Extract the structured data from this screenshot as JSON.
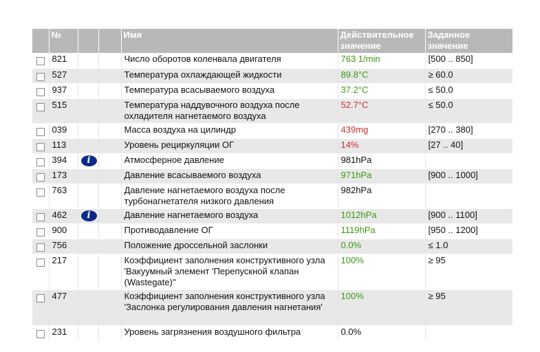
{
  "columns": {
    "num": "№",
    "name": "Имя",
    "actual": [
      "Действительное",
      "значение"
    ],
    "setpoint": [
      "Заданное",
      "значение"
    ]
  },
  "status_colors": {
    "in_range": "#3a9a10",
    "out_of_range": "#c93030",
    "neutral": "#111111"
  },
  "rows": [
    {
      "num": "821",
      "info": false,
      "name": "Число оборотов коленвала двигателя",
      "actual": "763 1/min",
      "status": "green",
      "setpoint": "[500 .. 850]"
    },
    {
      "num": "527",
      "info": false,
      "name": "Температура охлаждающей жидкости",
      "actual": "89.8°C",
      "status": "green",
      "setpoint": "≥ 60.0"
    },
    {
      "num": "937",
      "info": false,
      "name": "Температура всасываемого воздуха",
      "actual": "37.2°C",
      "status": "green",
      "setpoint": "≤ 50.0"
    },
    {
      "num": "515",
      "info": false,
      "name": "Температура наддувочного воздуха после охладителя нагнетаемого воздуха",
      "actual": "52.7°C",
      "status": "red",
      "setpoint": "≤ 50.0"
    },
    {
      "num": "039",
      "info": false,
      "name": "Масса воздуха на цилиндр",
      "actual": "439mg",
      "status": "red",
      "setpoint": "[270 .. 380]"
    },
    {
      "num": "113",
      "info": false,
      "name": "Уровень рециркуляции ОГ",
      "actual": "14%",
      "status": "red",
      "setpoint": "[27 .. 40]"
    },
    {
      "num": "394",
      "info": true,
      "name": "Атмосферное давление",
      "actual": "981hPa",
      "status": "black",
      "setpoint": ""
    },
    {
      "num": "173",
      "info": false,
      "name": "Давление всасываемого воздуха",
      "actual": "971hPa",
      "status": "green",
      "setpoint": "[900 .. 1000]"
    },
    {
      "num": "763",
      "info": false,
      "name": "Давление нагнетаемого воздуха после турбонагнетателя низкого давления",
      "actual": "982hPa",
      "status": "black",
      "setpoint": ""
    },
    {
      "num": "462",
      "info": true,
      "name": "Давление нагнетаемого воздуха",
      "actual": "1012hPa",
      "status": "green",
      "setpoint": "[900 .. 1100]"
    },
    {
      "num": "900",
      "info": false,
      "name": "Противодавление ОГ",
      "actual": "1119hPa",
      "status": "green",
      "setpoint": "[950 .. 1200]"
    },
    {
      "num": "756",
      "info": false,
      "name": "Положение дроссельной заслонки",
      "actual": "0.0%",
      "status": "green",
      "setpoint": "≤ 1.0"
    },
    {
      "num": "217",
      "info": false,
      "name": "Коэффициент заполнения конструктивного узла 'Вакуумный элемент 'Перепускной клапан (Wastegate)''",
      "actual": "100%",
      "status": "green",
      "setpoint": "≥ 95"
    },
    {
      "num": "477",
      "info": false,
      "name": "Коэффициент заполнения конструктивного узла 'Заслонка регулирования давления нагнетания'",
      "actual": "100%",
      "status": "green",
      "setpoint": "≥ 95"
    },
    {
      "num": "231",
      "info": false,
      "name": "Уровень загрязнения воздушного фильтра",
      "actual": "0.0%",
      "status": "black",
      "setpoint": ""
    }
  ]
}
